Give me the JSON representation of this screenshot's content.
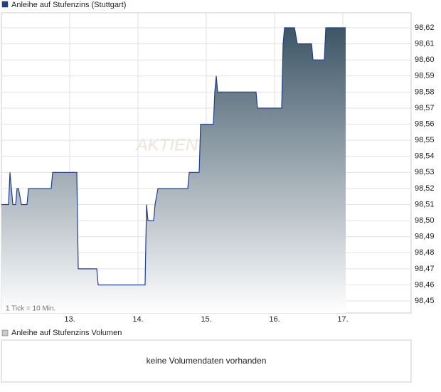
{
  "chart_data": {
    "type": "line",
    "legend_label": "Anleihe auf Stufenzins (Stuttgart)",
    "watermark": "AKTIEN",
    "annotation": "1 Tick = 10 Min.",
    "color": "#1f3f8f",
    "fill_top": "#3d5566",
    "xlim": [
      12.0,
      18.0
    ],
    "xticks": [
      {
        "value": 13,
        "label": "13."
      },
      {
        "value": 14,
        "label": "14."
      },
      {
        "value": 15,
        "label": "15."
      },
      {
        "value": 16,
        "label": "16."
      },
      {
        "value": 17,
        "label": "17."
      }
    ],
    "ylim": [
      98.4425,
      98.6293
    ],
    "yticks": [
      {
        "value": 98.45,
        "label": "98,45"
      },
      {
        "value": 98.46,
        "label": "98,46"
      },
      {
        "value": 98.47,
        "label": "98,47"
      },
      {
        "value": 98.48,
        "label": "98,48"
      },
      {
        "value": 98.49,
        "label": "98,49"
      },
      {
        "value": 98.5,
        "label": "98,50"
      },
      {
        "value": 98.51,
        "label": "98,51"
      },
      {
        "value": 98.52,
        "label": "98,52"
      },
      {
        "value": 98.53,
        "label": "98,53"
      },
      {
        "value": 98.54,
        "label": "98,54"
      },
      {
        "value": 98.55,
        "label": "98,55"
      },
      {
        "value": 98.56,
        "label": "98,56"
      },
      {
        "value": 98.57,
        "label": "98,57"
      },
      {
        "value": 98.58,
        "label": "98,58"
      },
      {
        "value": 98.59,
        "label": "98,59"
      },
      {
        "value": 98.6,
        "label": "98,60"
      },
      {
        "value": 98.61,
        "label": "98,61"
      },
      {
        "value": 98.62,
        "label": "98,62"
      }
    ],
    "grid": true,
    "x": [
      12.0,
      12.104,
      12.125,
      12.146,
      12.167,
      12.208,
      12.229,
      12.25,
      12.292,
      12.333,
      12.375,
      12.396,
      12.729,
      12.75,
      13.104,
      13.125,
      13.396,
      13.417,
      14.104,
      14.125,
      14.146,
      14.229,
      14.25,
      14.292,
      14.313,
      14.729,
      14.75,
      14.896,
      14.917,
      15.104,
      15.125,
      15.146,
      15.167,
      15.729,
      15.75,
      16.104,
      16.125,
      16.146,
      16.292,
      16.333,
      16.542,
      16.563,
      16.729,
      16.75,
      17.042
    ],
    "values": [
      98.51,
      98.51,
      98.53,
      98.52,
      98.51,
      98.51,
      98.52,
      98.52,
      98.51,
      98.51,
      98.51,
      98.52,
      98.52,
      98.53,
      98.53,
      98.47,
      98.47,
      98.46,
      98.46,
      98.51,
      98.5,
      98.5,
      98.51,
      98.52,
      98.52,
      98.52,
      98.53,
      98.53,
      98.56,
      98.56,
      98.58,
      98.59,
      98.58,
      98.58,
      98.57,
      98.57,
      98.61,
      98.62,
      98.62,
      98.61,
      98.61,
      98.6,
      98.6,
      98.62,
      98.62
    ]
  },
  "volume_panel": {
    "legend_label": "Anleihe auf Stufenzins Volumen",
    "message": "keine Volumendaten vorhanden"
  }
}
